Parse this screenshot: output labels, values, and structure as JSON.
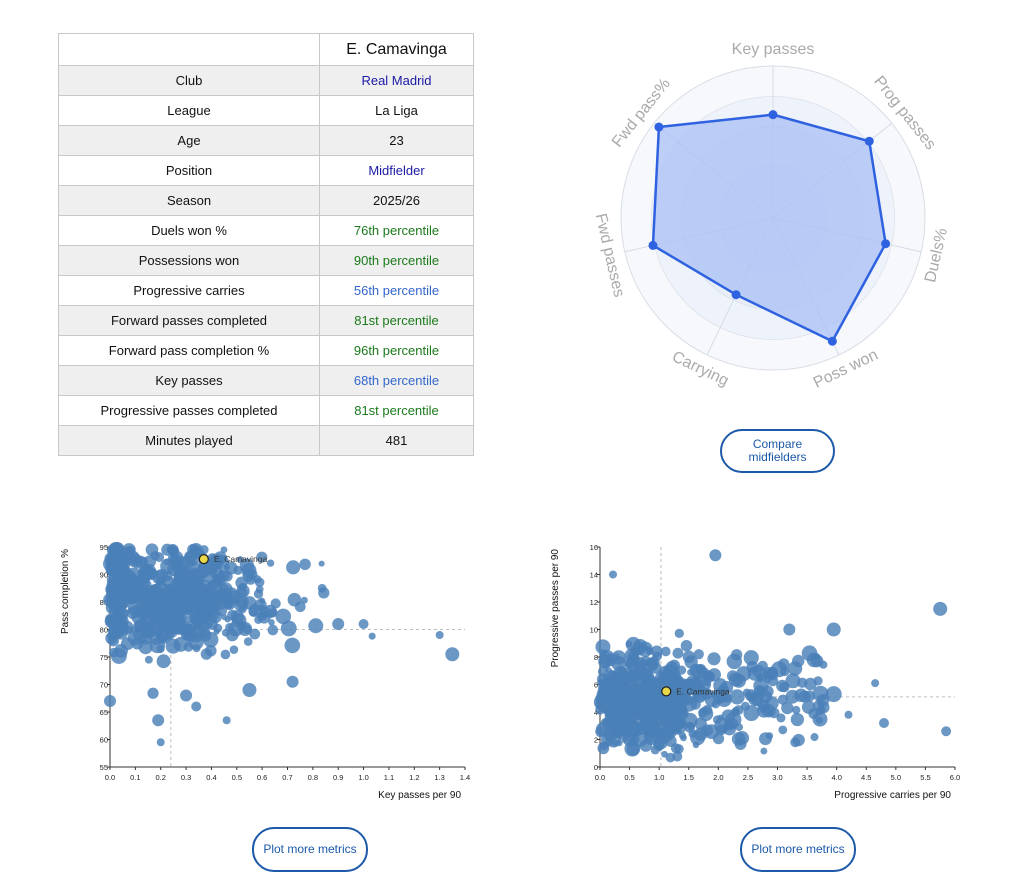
{
  "profile": {
    "player_name": "E. Camavinga",
    "rows": [
      {
        "label": "Club",
        "value": "Real Madrid",
        "color": "#1a1aa6"
      },
      {
        "label": "League",
        "value": "La Liga",
        "color": "#111111"
      },
      {
        "label": "Age",
        "value": "23",
        "color": "#111111"
      },
      {
        "label": "Position",
        "value": "Midfielder",
        "color": "#1a1aa6"
      },
      {
        "label": "Season",
        "value": "2025/26",
        "color": "#111111"
      },
      {
        "label": "Duels won %",
        "value": "76th percentile",
        "color": "#1b7a1b"
      },
      {
        "label": "Possessions won",
        "value": "90th percentile",
        "color": "#1b7a1b"
      },
      {
        "label": "Progressive carries",
        "value": "56th percentile",
        "color": "#3366cc"
      },
      {
        "label": "Forward passes completed",
        "value": "81st percentile",
        "color": "#1b7a1b"
      },
      {
        "label": "Forward pass completion %",
        "value": "96th percentile",
        "color": "#1b7a1b"
      },
      {
        "label": "Key passes",
        "value": "68th percentile",
        "color": "#3366cc"
      },
      {
        "label": "Progressive passes completed",
        "value": "81st percentile",
        "color": "#1b7a1b"
      },
      {
        "label": "Minutes played",
        "value": "481",
        "color": "#111111"
      }
    ]
  },
  "buttons": {
    "compare": "Compare midfielders",
    "plot_more_1": "Plot more metrics",
    "plot_more_2": "Plot more metrics"
  },
  "chart_data": [
    {
      "type": "radar",
      "axes": [
        "Key passes",
        "Prog passes",
        "Duels%",
        "Poss won",
        "Carrying",
        "Fwd passes",
        "Fwd pass%"
      ],
      "values": [
        68,
        81,
        76,
        90,
        56,
        81,
        96
      ],
      "range": [
        0,
        100
      ],
      "colors": {
        "fill": "#a9c0f5",
        "line": "#2f62e0",
        "ring": "#e8eef9"
      }
    },
    {
      "type": "scatter",
      "xlabel": "Key passes per 90",
      "ylabel": "Pass completion %",
      "xlim": [
        0.0,
        1.4
      ],
      "ylim": [
        55,
        95
      ],
      "xticks": [
        "0.0",
        "0.1",
        "0.2",
        "0.3",
        "0.4",
        "0.5",
        "0.6",
        "0.7",
        "0.8",
        "0.9",
        "1.0",
        "1.1",
        "1.2",
        "1.3",
        "1.4"
      ],
      "yticks": [
        "55",
        "60",
        "65",
        "70",
        "75",
        "80",
        "85",
        "90",
        "95"
      ],
      "highlight": {
        "label": "E. Camavinga",
        "x": 0.37,
        "y": 92.8
      },
      "reference": {
        "x": 0.24,
        "y": 80
      },
      "colors": {
        "point": "#4a80b8",
        "highlight": "#e8d84a"
      },
      "population": 600
    },
    {
      "type": "scatter",
      "xlabel": "Progressive carries per 90",
      "ylabel": "Progressive passes per 90",
      "xlim": [
        0.0,
        6.0
      ],
      "ylim": [
        0,
        16
      ],
      "xticks": [
        "0.0",
        "0.5",
        "1.0",
        "1.5",
        "2.0",
        "2.5",
        "3.0",
        "3.5",
        "4.0",
        "4.5",
        "5.0",
        "5.5",
        "6.0"
      ],
      "yticks": [
        "0",
        "2",
        "4",
        "6",
        "8",
        "10",
        "12",
        "14",
        "16"
      ],
      "highlight": {
        "label": "E. Camavinga",
        "x": 1.12,
        "y": 5.5
      },
      "reference": {
        "x": 1.03,
        "y": 5.1
      },
      "colors": {
        "point": "#4a80b8",
        "highlight": "#e8d84a"
      },
      "population": 600
    }
  ]
}
